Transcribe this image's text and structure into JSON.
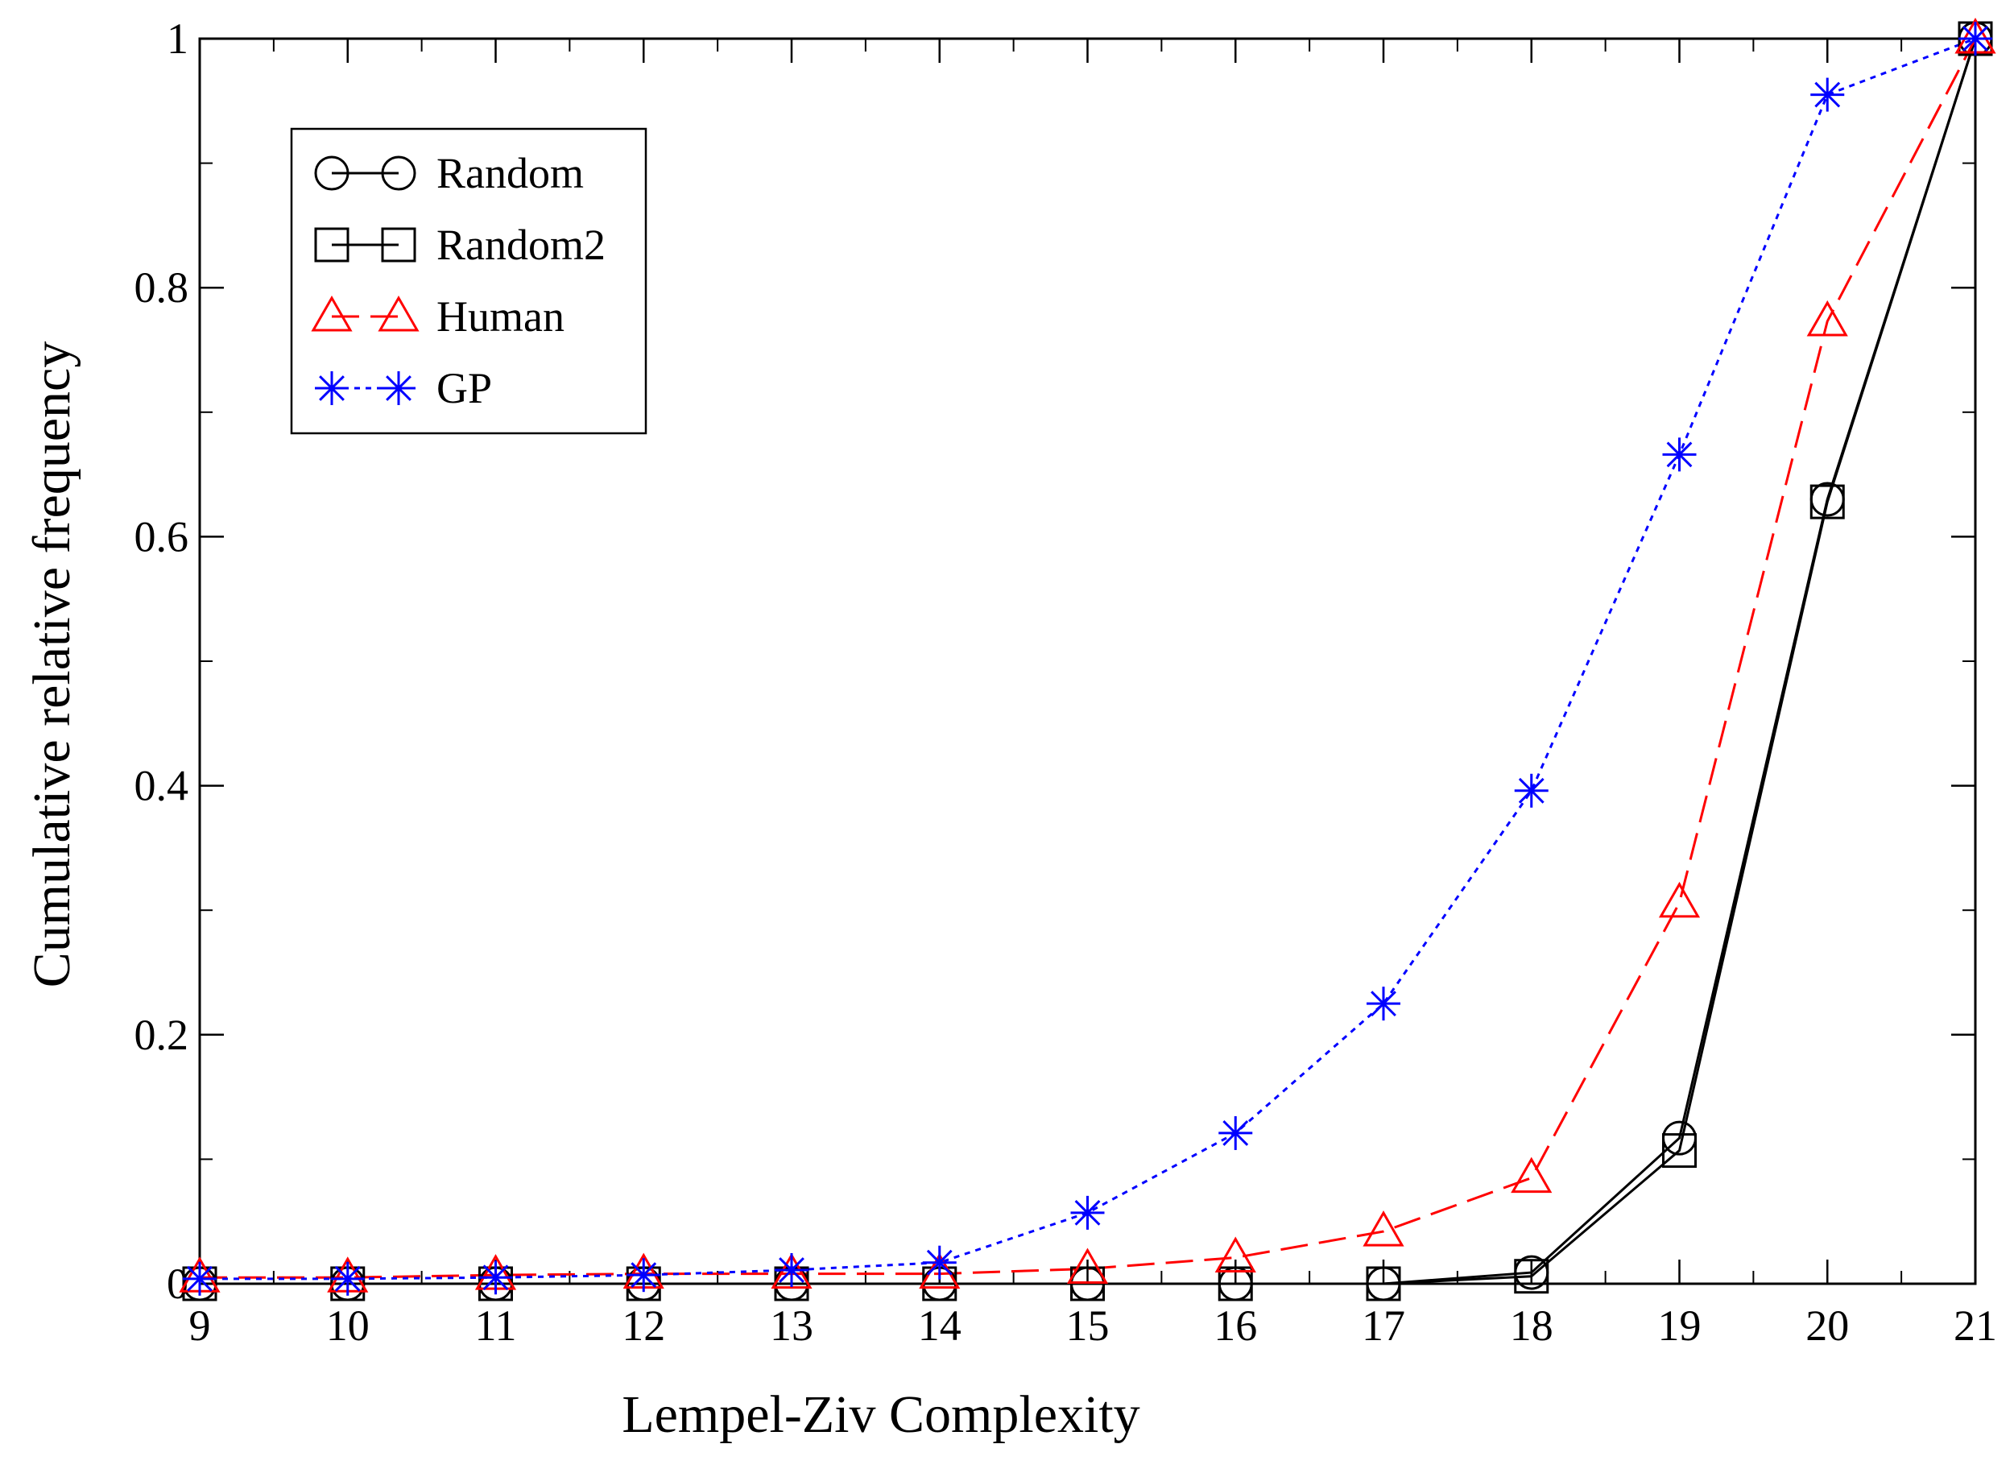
{
  "chart_data": {
    "type": "line",
    "title": "",
    "xlabel": "Lempel-Ziv Complexity",
    "ylabel": "Cumulative relative frequency",
    "xlim": [
      9,
      21
    ],
    "ylim": [
      0,
      1
    ],
    "grid": false,
    "legend_position": "top-left",
    "x": [
      9,
      10,
      11,
      12,
      13,
      14,
      15,
      16,
      17,
      18,
      19,
      20,
      21
    ],
    "x_tick_labels": [
      "9",
      "10",
      "11",
      "12",
      "13",
      "14",
      "15",
      "16",
      "17",
      "18",
      "19",
      "20",
      "21"
    ],
    "y_ticks": [
      0,
      0.2,
      0.4,
      0.6,
      0.8,
      1
    ],
    "y_tick_labels": [
      "0",
      "0.2",
      "0.4",
      "0.6",
      "0.8",
      "1"
    ],
    "series": [
      {
        "name": "Random",
        "color": "#000000",
        "marker": "circle",
        "dash": "solid",
        "values": [
          0,
          0,
          0,
          0,
          0,
          0,
          0,
          0,
          0,
          0.009,
          0.117,
          0.63,
          1
        ]
      },
      {
        "name": "Random2",
        "color": "#000000",
        "marker": "square",
        "dash": "solid",
        "values": [
          0,
          0,
          0,
          0,
          0,
          0,
          0,
          0,
          0,
          0.006,
          0.107,
          0.628,
          1
        ]
      },
      {
        "name": "Human",
        "color": "#ff0000",
        "marker": "triangle",
        "dash": "dashed",
        "values": [
          0.005,
          0.005,
          0.007,
          0.008,
          0.008,
          0.008,
          0.012,
          0.021,
          0.042,
          0.085,
          0.306,
          0.773,
          1
        ]
      },
      {
        "name": "GP",
        "color": "#0000ff",
        "marker": "star",
        "dash": "dotted",
        "values": [
          0.004,
          0.004,
          0.005,
          0.007,
          0.011,
          0.017,
          0.057,
          0.121,
          0.225,
          0.396,
          0.666,
          0.955,
          1
        ]
      }
    ]
  }
}
